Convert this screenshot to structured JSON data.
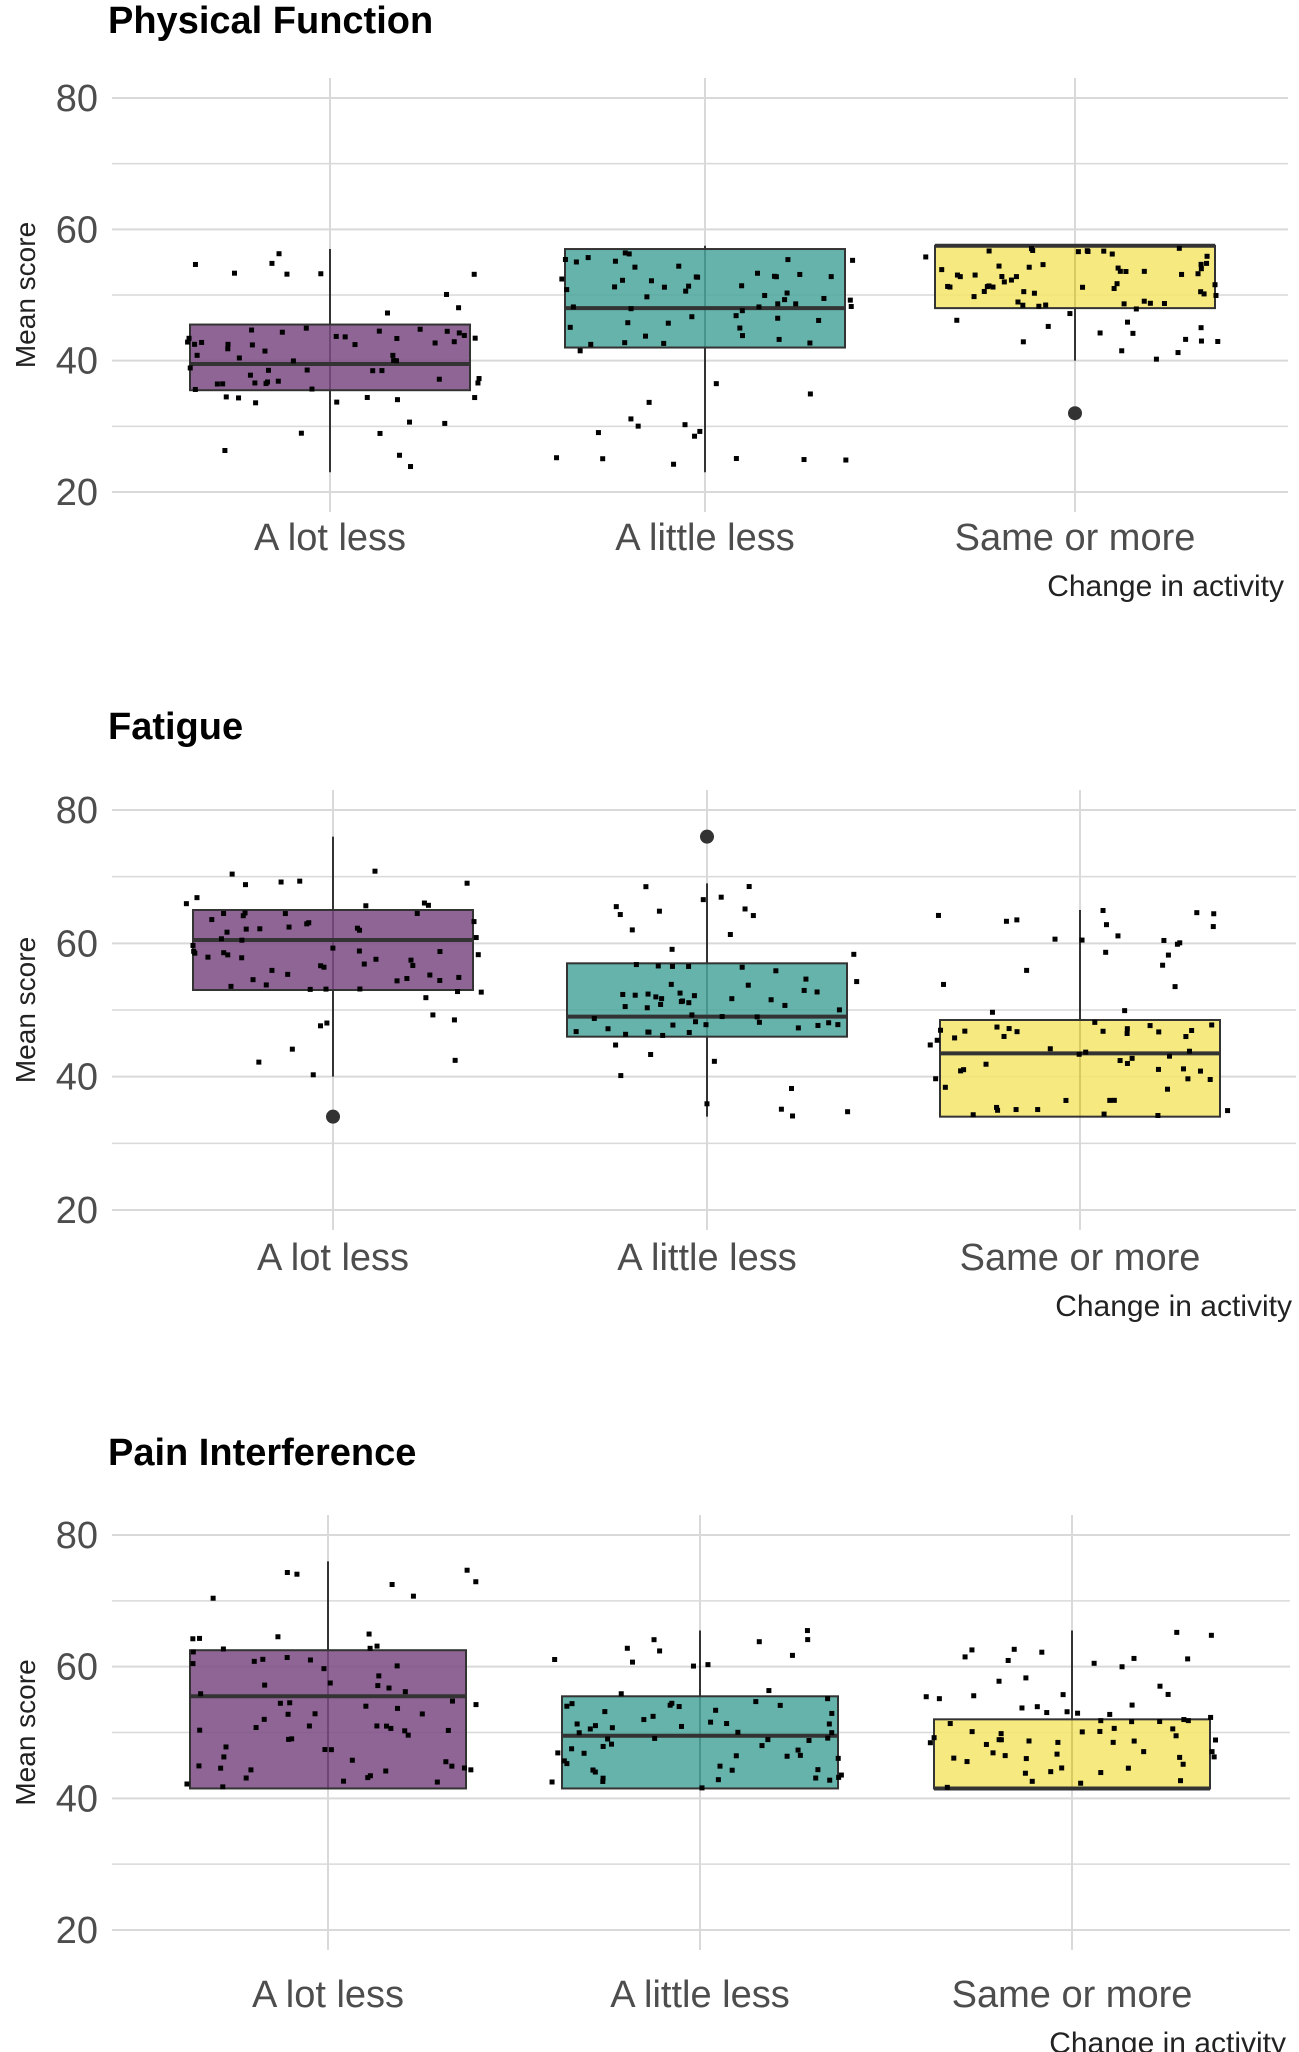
{
  "chart_data": [
    {
      "type": "box",
      "title": "Physical Function",
      "xlabel": "Change in activity",
      "ylabel": "Mean score",
      "ylim": [
        20,
        80
      ],
      "yticks": [
        20,
        40,
        60,
        80
      ],
      "categories": [
        "A lot less",
        "A little less",
        "Same or more"
      ],
      "colors": [
        "#7b4a82",
        "#4aa69c",
        "#f3e56a"
      ],
      "grid": true,
      "boxes": [
        {
          "category": "A lot less",
          "min": 23,
          "q1": 35.5,
          "median": 39.5,
          "q3": 45.5,
          "max": 57,
          "outliers": []
        },
        {
          "category": "A little less",
          "min": 23,
          "q1": 42,
          "median": 48,
          "q3": 57,
          "max": 57.5,
          "outliers": []
        },
        {
          "category": "Same or more",
          "min": 40,
          "q1": 48,
          "median": 57.5,
          "q3": 57.5,
          "max": 57.5,
          "outliers": [
            32
          ]
        }
      ]
    },
    {
      "type": "box",
      "title": "Fatigue",
      "xlabel": "Change in activity",
      "ylabel": "Mean score",
      "ylim": [
        20,
        80
      ],
      "yticks": [
        20,
        40,
        60,
        80
      ],
      "categories": [
        "A lot less",
        "A little less",
        "Same or more"
      ],
      "colors": [
        "#7b4a82",
        "#4aa69c",
        "#f3e56a"
      ],
      "grid": true,
      "boxes": [
        {
          "category": "A lot less",
          "min": 40,
          "q1": 53,
          "median": 60.5,
          "q3": 65,
          "max": 76,
          "outliers": [
            34
          ]
        },
        {
          "category": "A little less",
          "min": 34,
          "q1": 46,
          "median": 49,
          "q3": 57,
          "max": 69,
          "outliers": [
            76
          ]
        },
        {
          "category": "Same or more",
          "min": 34,
          "q1": 34,
          "median": 43.5,
          "q3": 48.5,
          "max": 65,
          "outliers": []
        }
      ]
    },
    {
      "type": "box",
      "title": "Pain Interference",
      "xlabel": "Change in activity",
      "ylabel": "Mean score",
      "ylim": [
        20,
        80
      ],
      "yticks": [
        20,
        40,
        60,
        80
      ],
      "categories": [
        "A lot less",
        "A little less",
        "Same or more"
      ],
      "colors": [
        "#7b4a82",
        "#4aa69c",
        "#f3e56a"
      ],
      "grid": true,
      "boxes": [
        {
          "category": "A lot less",
          "min": 41.5,
          "q1": 41.5,
          "median": 55.5,
          "q3": 62.5,
          "max": 76,
          "outliers": []
        },
        {
          "category": "A little less",
          "min": 41.5,
          "q1": 41.5,
          "median": 49.5,
          "q3": 55.5,
          "max": 65.5,
          "outliers": []
        },
        {
          "category": "Same or more",
          "min": 41.5,
          "q1": 41.5,
          "median": 41.5,
          "q3": 52,
          "max": 65.5,
          "outliers": []
        }
      ]
    }
  ]
}
